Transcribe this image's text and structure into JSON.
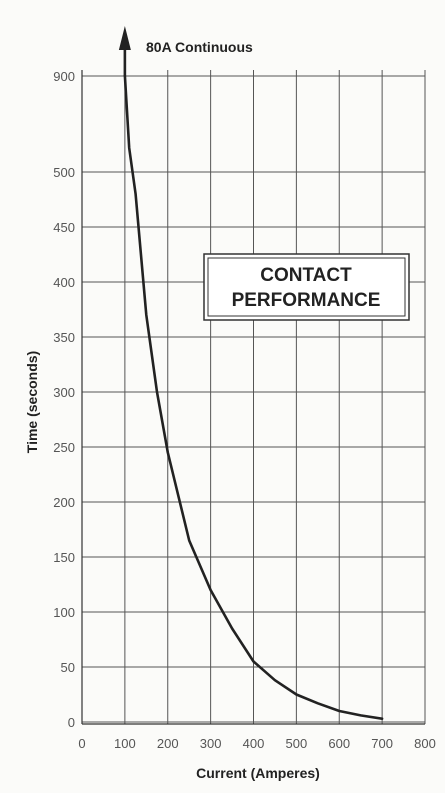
{
  "chart_data": {
    "type": "line",
    "title": "",
    "xlabel": "Current (Amperes)",
    "ylabel": "Time (seconds)",
    "xlim": [
      0,
      800
    ],
    "x_ticks": [
      0,
      100,
      200,
      300,
      400,
      500,
      600,
      700,
      800
    ],
    "y_ticks": [
      0,
      50,
      100,
      150,
      200,
      250,
      300,
      350,
      400,
      450,
      500,
      900
    ],
    "grid": true,
    "annotation": "80A Continuous",
    "box_label": [
      "CONTACT",
      "PERFORMANCE"
    ],
    "series": [
      {
        "x": [
          100,
          110,
          125,
          150,
          175,
          200,
          250,
          300,
          350,
          400,
          450,
          500,
          550,
          600,
          650,
          700
        ],
        "y": [
          900,
          600,
          480,
          370,
          300,
          245,
          165,
          120,
          85,
          55,
          38,
          25,
          17,
          10,
          6,
          3
        ]
      }
    ]
  }
}
